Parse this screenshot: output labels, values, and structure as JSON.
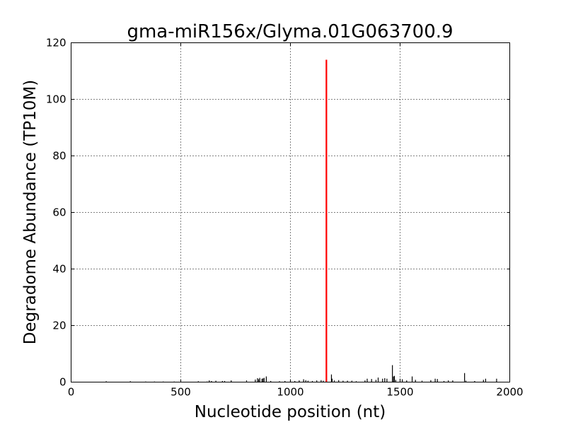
{
  "chart_data": {
    "type": "bar",
    "title": "gma-miR156x/Glyma.01G063700.9",
    "xlabel": "Nucleotide position (nt)",
    "ylabel": "Degradome Abundance (TP10M)",
    "xlim": [
      0,
      2000
    ],
    "ylim": [
      0,
      120
    ],
    "xticks": [
      0,
      500,
      1000,
      1500,
      2000
    ],
    "yticks": [
      0,
      20,
      40,
      60,
      80,
      100,
      120
    ],
    "grid": true,
    "legend": "none",
    "colors": {
      "background_reads": "#000000",
      "target_site": "#ff0000"
    },
    "target_site": {
      "x": 1164,
      "y": 114
    },
    "series": [
      {
        "x": [
          160,
          270,
          340,
          380,
          420,
          470,
          500,
          580,
          620,
          630,
          640,
          660,
          690,
          700,
          730,
          800,
          840,
          850,
          855,
          860,
          870,
          875,
          880,
          890,
          910,
          950,
          975,
          1000,
          1020,
          1040,
          1060,
          1070,
          1080,
          1100,
          1120,
          1140,
          1150,
          1187,
          1190,
          1200,
          1220,
          1240,
          1260,
          1280,
          1300,
          1340,
          1350,
          1370,
          1390,
          1400,
          1420,
          1430,
          1440,
          1465,
          1470,
          1474,
          1480,
          1500,
          1510,
          1530,
          1555,
          1570,
          1600,
          1640,
          1660,
          1670,
          1700,
          1720,
          1740,
          1794,
          1800,
          1840,
          1880,
          1890,
          1940
        ],
        "y": [
          0.3,
          0.3,
          0.2,
          0.2,
          0.2,
          0.2,
          0.2,
          0.3,
          0.2,
          0.6,
          0.4,
          0.5,
          0.4,
          0.4,
          0.6,
          0.6,
          0.9,
          1.4,
          1.0,
          1.5,
          1.2,
          1.3,
          1.5,
          2.0,
          0.4,
          0.3,
          0.4,
          0.4,
          0.4,
          0.6,
          1.0,
          0.7,
          0.5,
          0.4,
          0.6,
          0.7,
          0.5,
          2.7,
          1.2,
          0.6,
          0.7,
          0.5,
          0.5,
          0.5,
          0.3,
          0.6,
          1.2,
          1.1,
          0.8,
          1.6,
          1.2,
          1.4,
          1.2,
          6.0,
          2.0,
          2.2,
          0.8,
          1.2,
          1.0,
          0.6,
          2.0,
          0.8,
          0.5,
          0.7,
          1.2,
          1.1,
          0.4,
          0.6,
          0.6,
          3.2,
          0.5,
          0.4,
          0.8,
          1.2,
          1.2
        ]
      }
    ]
  }
}
